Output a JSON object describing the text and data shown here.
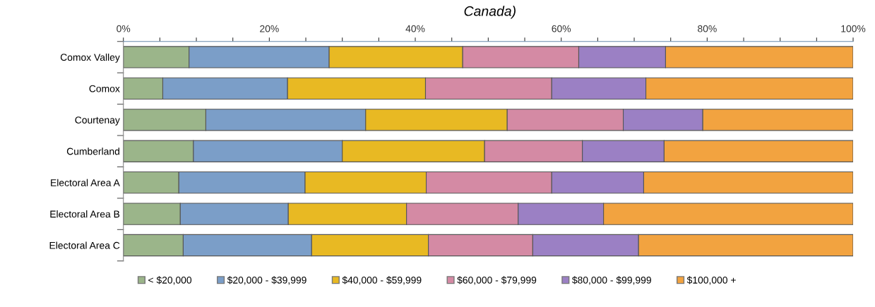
{
  "chart_data": {
    "type": "bar",
    "orientation": "horizontal",
    "stacked": true,
    "title": "Canada)",
    "categories": [
      "Comox Valley",
      "Comox",
      "Courtenay",
      "Cumberland",
      "Electoral Area A",
      "Electoral Area B",
      "Electoral Area C"
    ],
    "series": [
      {
        "name": "< $20,000",
        "color": "#9bb58a",
        "values": [
          9.0,
          5.4,
          11.3,
          9.6,
          7.6,
          7.8,
          8.2
        ]
      },
      {
        "name": "$20,000 - $39,999",
        "color": "#7b9ec8",
        "values": [
          19.2,
          17.1,
          21.9,
          20.4,
          17.3,
          14.8,
          17.6
        ]
      },
      {
        "name": "$40,000 - $59,999",
        "color": "#e8b923",
        "values": [
          18.3,
          18.9,
          19.4,
          19.5,
          16.6,
          16.2,
          16.0
        ]
      },
      {
        "name": "$60,000 - $79,999",
        "color": "#d48aa4",
        "values": [
          15.9,
          17.3,
          15.9,
          13.4,
          17.2,
          15.3,
          14.3
        ]
      },
      {
        "name": "$80,000 - $99,999",
        "color": "#9b80c4",
        "values": [
          11.9,
          12.9,
          10.9,
          11.2,
          12.6,
          11.7,
          14.5
        ]
      },
      {
        "name": "$100,000 +",
        "color": "#f2a340",
        "values": [
          25.7,
          28.4,
          20.6,
          25.9,
          28.7,
          34.2,
          29.4
        ]
      }
    ],
    "xlim": [
      0,
      100
    ],
    "xticks": [
      {
        "value": 0,
        "label": "0%"
      },
      {
        "value": 5,
        "label": null
      },
      {
        "value": 10,
        "label": null
      },
      {
        "value": 15,
        "label": null
      },
      {
        "value": 20,
        "label": "20%"
      },
      {
        "value": 25,
        "label": null
      },
      {
        "value": 30,
        "label": null
      },
      {
        "value": 35,
        "label": null
      },
      {
        "value": 40,
        "label": "40%"
      },
      {
        "value": 45,
        "label": null
      },
      {
        "value": 50,
        "label": null
      },
      {
        "value": 55,
        "label": null
      },
      {
        "value": 60,
        "label": "60%"
      },
      {
        "value": 65,
        "label": null
      },
      {
        "value": 70,
        "label": null
      },
      {
        "value": 75,
        "label": null
      },
      {
        "value": 80,
        "label": "80%"
      },
      {
        "value": 85,
        "label": null
      },
      {
        "value": 90,
        "label": null
      },
      {
        "value": 95,
        "label": null
      },
      {
        "value": 100,
        "label": "100%"
      }
    ],
    "grid": false,
    "legend": "bottom"
  }
}
